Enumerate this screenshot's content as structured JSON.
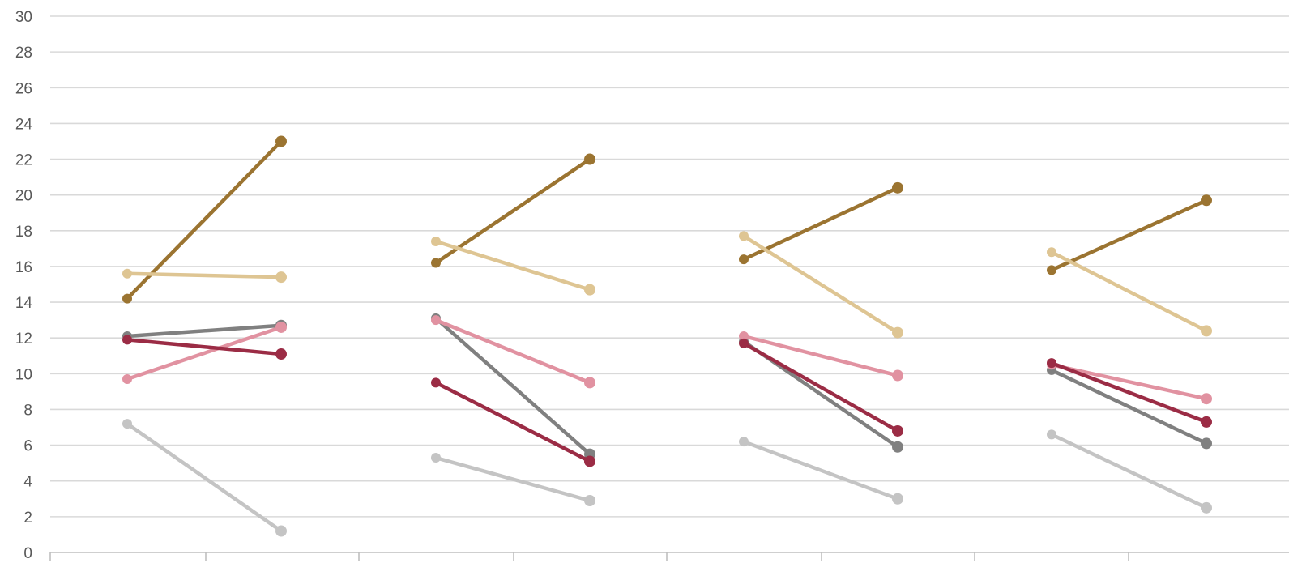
{
  "chart_data": {
    "type": "line",
    "ylim": [
      0,
      30
    ],
    "y_ticks": [
      0,
      2,
      4,
      6,
      8,
      10,
      12,
      14,
      16,
      18,
      20,
      22,
      24,
      26,
      28,
      30
    ],
    "y_tick_labels": [
      "0",
      "2",
      "4",
      "6",
      "8",
      "10",
      "12",
      "14",
      "16",
      "18",
      "20",
      "22",
      "24",
      "26",
      "28",
      "30"
    ],
    "grid": true,
    "legend": "none",
    "groups": [
      {
        "series": [
          {
            "color": "#9B7431",
            "values": [
              14.2,
              23.0
            ]
          },
          {
            "color": "#DEC593",
            "values": [
              15.6,
              15.4
            ]
          },
          {
            "color": "#808080",
            "values": [
              12.1,
              12.7
            ]
          },
          {
            "color": "#E192A1",
            "values": [
              9.7,
              12.6
            ]
          },
          {
            "color": "#9B2C45",
            "values": [
              11.9,
              11.1
            ]
          },
          {
            "color": "#C4C4C4",
            "values": [
              7.2,
              1.2
            ]
          }
        ]
      },
      {
        "series": [
          {
            "color": "#9B7431",
            "values": [
              16.2,
              22.0
            ]
          },
          {
            "color": "#DEC593",
            "values": [
              17.4,
              14.7
            ]
          },
          {
            "color": "#808080",
            "values": [
              13.1,
              5.5
            ]
          },
          {
            "color": "#E192A1",
            "values": [
              13.0,
              9.5
            ]
          },
          {
            "color": "#9B2C45",
            "values": [
              9.5,
              5.1
            ]
          },
          {
            "color": "#C4C4C4",
            "values": [
              5.3,
              2.9
            ]
          }
        ]
      },
      {
        "series": [
          {
            "color": "#9B7431",
            "values": [
              16.4,
              20.4
            ]
          },
          {
            "color": "#DEC593",
            "values": [
              17.7,
              12.3
            ]
          },
          {
            "color": "#808080",
            "values": [
              11.8,
              5.9
            ]
          },
          {
            "color": "#E192A1",
            "values": [
              12.1,
              9.9
            ]
          },
          {
            "color": "#9B2C45",
            "values": [
              11.7,
              6.8
            ]
          },
          {
            "color": "#C4C4C4",
            "values": [
              6.2,
              3.0
            ]
          }
        ]
      },
      {
        "series": [
          {
            "color": "#9B7431",
            "values": [
              15.8,
              19.7
            ]
          },
          {
            "color": "#DEC593",
            "values": [
              16.8,
              12.4
            ]
          },
          {
            "color": "#808080",
            "values": [
              10.2,
              6.1
            ]
          },
          {
            "color": "#E192A1",
            "values": [
              10.5,
              8.6
            ]
          },
          {
            "color": "#9B2C45",
            "values": [
              10.6,
              7.3
            ]
          },
          {
            "color": "#C4C4C4",
            "values": [
              6.6,
              2.5
            ]
          }
        ]
      }
    ]
  }
}
